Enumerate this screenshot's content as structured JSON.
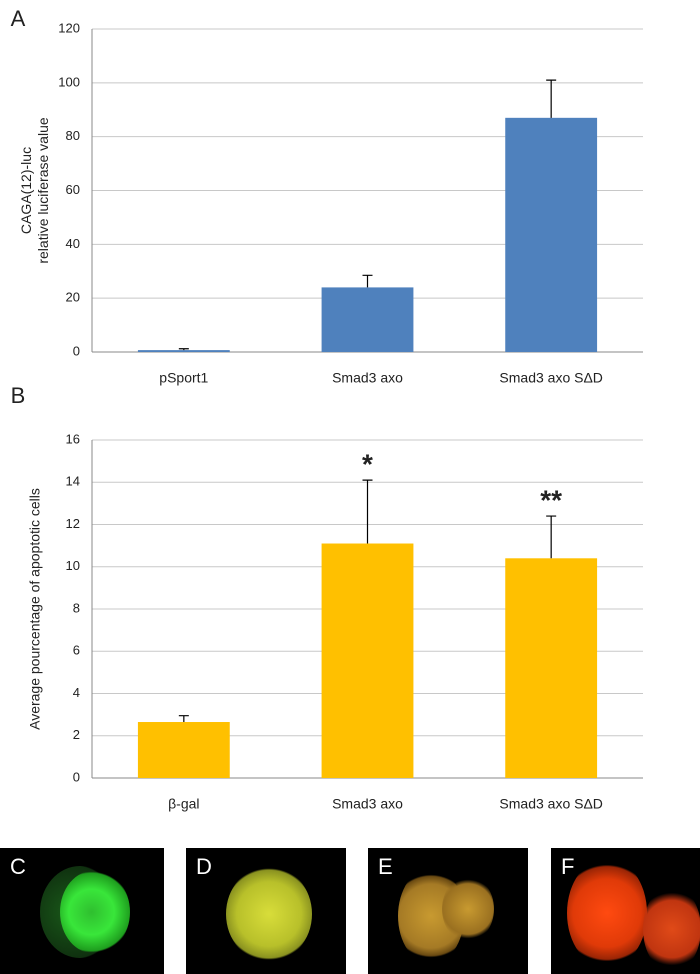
{
  "chart_data": [
    {
      "type": "bar",
      "panel": "A",
      "y_label": [
        "CAGA(12)-luc",
        "relative luciferase value"
      ],
      "categories": [
        "pSport1",
        "Smad3 axo",
        "Smad3 axo SΔD"
      ],
      "values": [
        0.7,
        24,
        87
      ],
      "errors": [
        0.5,
        4.5,
        14
      ],
      "color": "#4f81bd",
      "ylim": [
        0,
        120
      ],
      "yticks": [
        0,
        20,
        40,
        60,
        80,
        100,
        120
      ],
      "grid": true
    },
    {
      "type": "bar",
      "panel": "B",
      "y_label": [
        "Average pourcentage of apoptotic cells"
      ],
      "categories": [
        "β-gal",
        "Smad3 axo",
        "Smad3 axo SΔD"
      ],
      "values": [
        2.65,
        11.1,
        10.4
      ],
      "errors": [
        0.3,
        3.0,
        2.0
      ],
      "color": "#ffc000",
      "ylim": [
        0,
        16
      ],
      "yticks": [
        0,
        2,
        4,
        6,
        8,
        10,
        12,
        14,
        16
      ],
      "grid": true,
      "annotations": [
        {
          "text": "*",
          "x": "Smad3 axo"
        },
        {
          "text": "**",
          "x": "Smad3 axo SΔD"
        }
      ]
    }
  ],
  "panels": [
    "C",
    "D",
    "E",
    "F"
  ]
}
